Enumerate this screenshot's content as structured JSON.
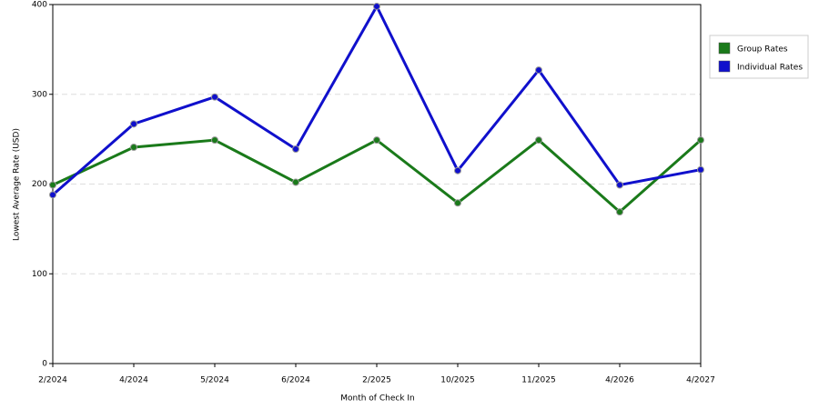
{
  "chart_data": {
    "type": "line",
    "x_label": "Month of Check In",
    "y_label": "Lowest Average Rate (USD)",
    "categories": [
      "2/2024",
      "4/2024",
      "5/2024",
      "6/2024",
      "2/2025",
      "10/2025",
      "11/2025",
      "4/2026",
      "4/2027"
    ],
    "series": [
      {
        "name": "Group Rates",
        "color": "#1a7a1a",
        "values": [
          199,
          241,
          249,
          202,
          249,
          179,
          249,
          169,
          249
        ]
      },
      {
        "name": "Individual Rates",
        "color": "#1010cc",
        "values": [
          188,
          267,
          297,
          239,
          398,
          215,
          327,
          199,
          216
        ]
      }
    ],
    "ylim": [
      0,
      400
    ],
    "yticks": [
      0,
      100,
      200,
      300,
      400
    ],
    "grid": true,
    "legend": "top-right"
  }
}
